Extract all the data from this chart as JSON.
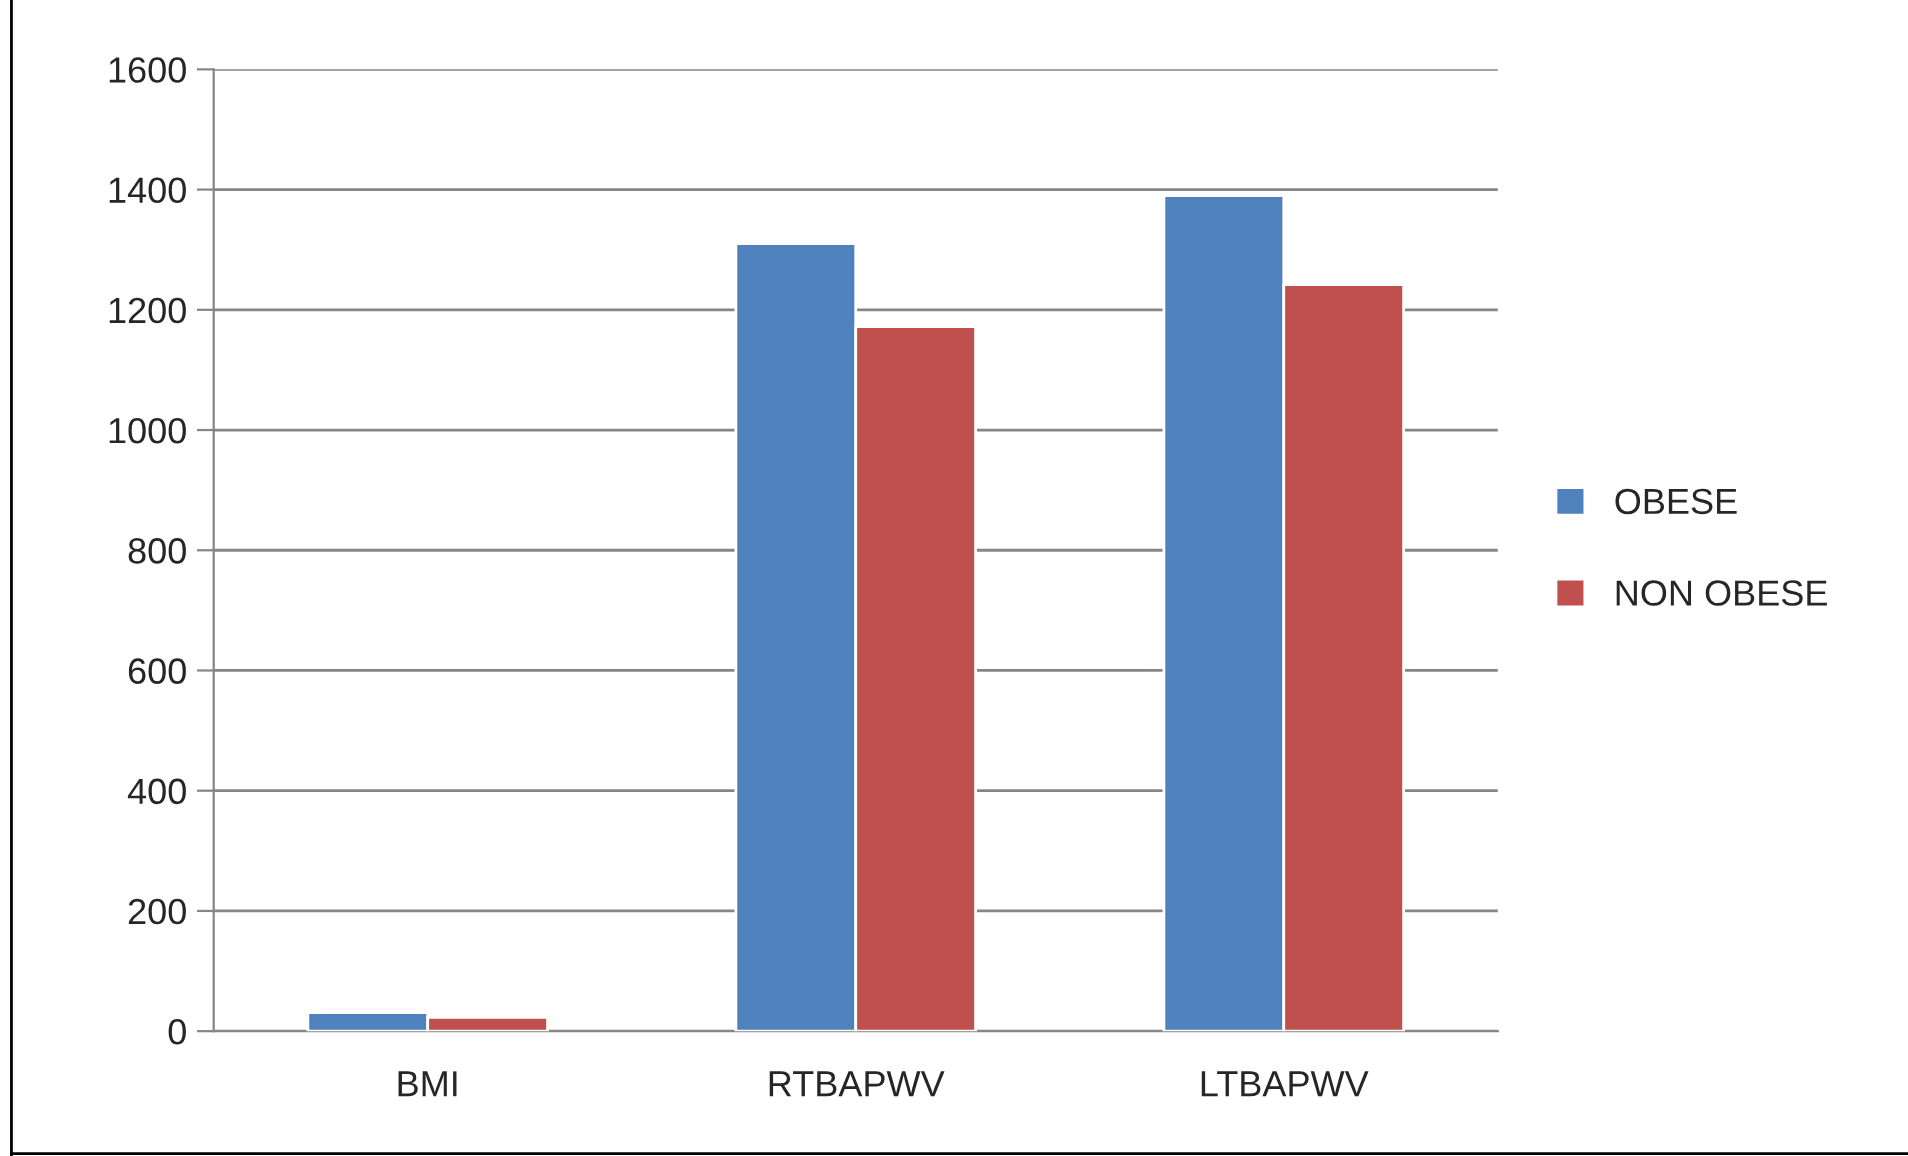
{
  "chart_data": {
    "type": "bar",
    "categories": [
      "BMI",
      "RTBAPWV",
      "LTBAPWV"
    ],
    "series": [
      {
        "name": "OBESE",
        "color": "#4f81bd",
        "values": [
          31,
          1310,
          1390
        ]
      },
      {
        "name": "NON OBESE",
        "color": "#c0504d",
        "values": [
          23,
          1172,
          1242
        ]
      }
    ],
    "ylim": [
      0,
      1600
    ],
    "yticks": [
      0,
      200,
      400,
      600,
      800,
      1000,
      1200,
      1400,
      1600
    ],
    "grid": "y",
    "legend": "right"
  }
}
